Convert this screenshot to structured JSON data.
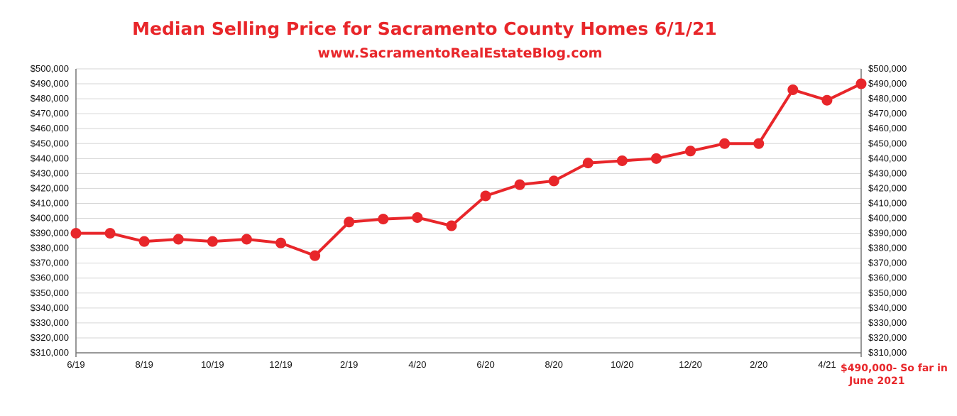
{
  "chart_data": {
    "type": "line",
    "title": "Median Selling Price for Sacramento County Homes 6/1/21",
    "subtitle": "www.SacramentoRealEstateBlog.com",
    "xlabel": "",
    "ylabel": "",
    "x_tick_labels": [
      "6/19",
      "8/19",
      "10/19",
      "12/19",
      "2/19",
      "4/20",
      "6/20",
      "8/20",
      "10/20",
      "12/20",
      "2/20",
      "4/21"
    ],
    "x_tick_indices": [
      0,
      2,
      4,
      6,
      8,
      10,
      12,
      14,
      16,
      18,
      20,
      22
    ],
    "y_tick_labels": [
      "$310,000",
      "$320,000",
      "$330,000",
      "$340,000",
      "$350,000",
      "$360,000",
      "$370,000",
      "$380,000",
      "$390,000",
      "$400,000",
      "$410,000",
      "$420,000",
      "$430,000",
      "$440,000",
      "$450,000",
      "$460,000",
      "$470,000",
      "$480,000",
      "$490,000",
      "$500,000"
    ],
    "ylim": [
      310000,
      500000
    ],
    "grid": true,
    "series": [
      {
        "name": "",
        "color": "#e8262a",
        "values": [
          390000,
          390000,
          384500,
          386000,
          384500,
          386000,
          383500,
          375000,
          397500,
          399500,
          400500,
          395000,
          415000,
          422500,
          425000,
          437000,
          438500,
          440000,
          445000,
          450000,
          450000,
          486000,
          479000,
          490000
        ]
      }
    ],
    "annotation": [
      "$490,000- So far in",
      "June 2021"
    ]
  }
}
